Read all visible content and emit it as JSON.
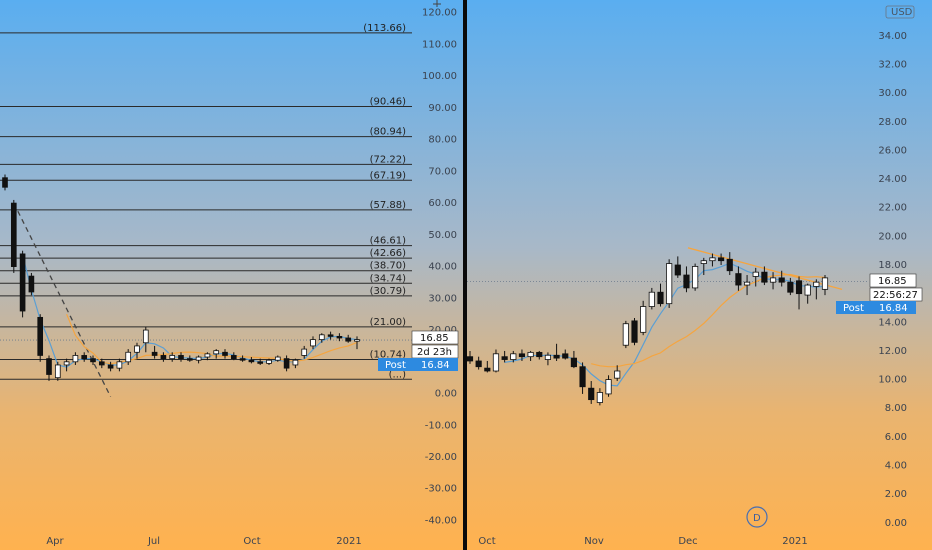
{
  "chart_data": [
    {
      "type": "candlestick",
      "panel": "left",
      "y_axis": {
        "ticks": [
          "-40.00",
          "-30.00",
          "-20.00",
          "-10.00",
          "0.00",
          "10.00",
          "20.00",
          "30.00",
          "40.00",
          "50.00",
          "60.00",
          "70.00",
          "80.00",
          "90.00",
          "100.00",
          "110.00",
          "120.00"
        ],
        "range": [
          -43,
          124
        ]
      },
      "x_axis": {
        "labels": [
          "Apr",
          "Jul",
          "Oct",
          "2021"
        ]
      },
      "levels": [
        {
          "label": "(113.66)",
          "value": 113.66
        },
        {
          "label": "(90.46)",
          "value": 90.46
        },
        {
          "label": "(80.94)",
          "value": 80.94
        },
        {
          "label": "(72.22)",
          "value": 72.22
        },
        {
          "label": "(67.19)",
          "value": 67.19
        },
        {
          "label": "(57.88)",
          "value": 57.88
        },
        {
          "label": "(46.61)",
          "value": 46.61
        },
        {
          "label": "(42.66)",
          "value": 42.66
        },
        {
          "label": "(38.70)",
          "value": 38.7
        },
        {
          "label": "(34.74)",
          "value": 34.74
        },
        {
          "label": "(30.79)",
          "value": 30.79
        },
        {
          "label": "(21.00)",
          "value": 21.0
        },
        {
          "label": "(10.74)",
          "value": 10.74
        },
        {
          "label": "(...)",
          "value": 4.5
        }
      ],
      "candles": [
        {
          "o": 68,
          "h": 69,
          "l": 64,
          "c": 65
        },
        {
          "o": 60,
          "h": 61,
          "l": 38,
          "c": 40
        },
        {
          "o": 44,
          "h": 45,
          "l": 24,
          "c": 26
        },
        {
          "o": 37,
          "h": 38,
          "l": 31,
          "c": 32
        },
        {
          "o": 24,
          "h": 25,
          "l": 10,
          "c": 12
        },
        {
          "o": 11,
          "h": 12,
          "l": 4,
          "c": 6
        },
        {
          "o": 5,
          "h": 10,
          "l": 4,
          "c": 9
        },
        {
          "o": 9,
          "h": 11,
          "l": 7,
          "c": 10
        },
        {
          "o": 10,
          "h": 13,
          "l": 9,
          "c": 12
        },
        {
          "o": 12,
          "h": 13,
          "l": 10,
          "c": 11
        },
        {
          "o": 11,
          "h": 12,
          "l": 9,
          "c": 10
        },
        {
          "o": 10,
          "h": 11,
          "l": 8,
          "c": 9
        },
        {
          "o": 9,
          "h": 10,
          "l": 7,
          "c": 8
        },
        {
          "o": 8,
          "h": 11,
          "l": 7,
          "c": 10
        },
        {
          "o": 10,
          "h": 14,
          "l": 9,
          "c": 13
        },
        {
          "o": 13,
          "h": 16,
          "l": 11,
          "c": 15
        },
        {
          "o": 16,
          "h": 21,
          "l": 13,
          "c": 20
        },
        {
          "o": 13,
          "h": 15,
          "l": 11,
          "c": 12
        },
        {
          "o": 12,
          "h": 13,
          "l": 10,
          "c": 11
        },
        {
          "o": 11,
          "h": 13,
          "l": 10,
          "c": 12
        },
        {
          "o": 12,
          "h": 13,
          "l": 10,
          "c": 11
        },
        {
          "o": 11,
          "h": 12,
          "l": 10,
          "c": 10.5
        },
        {
          "o": 10.5,
          "h": 12,
          "l": 9.5,
          "c": 11.5
        },
        {
          "o": 11.5,
          "h": 13,
          "l": 10.5,
          "c": 12.5
        },
        {
          "o": 12.5,
          "h": 14,
          "l": 11,
          "c": 13.5
        },
        {
          "o": 13,
          "h": 14,
          "l": 11,
          "c": 12
        },
        {
          "o": 12,
          "h": 13,
          "l": 10.5,
          "c": 11
        },
        {
          "o": 11,
          "h": 12,
          "l": 10,
          "c": 10.5
        },
        {
          "o": 10.5,
          "h": 11.5,
          "l": 9.5,
          "c": 10
        },
        {
          "o": 10,
          "h": 11,
          "l": 9,
          "c": 9.5
        },
        {
          "o": 9.5,
          "h": 11,
          "l": 9,
          "c": 10.5
        },
        {
          "o": 10.5,
          "h": 12,
          "l": 10,
          "c": 11.5
        },
        {
          "o": 11,
          "h": 12,
          "l": 7,
          "c": 8
        },
        {
          "o": 9,
          "h": 11,
          "l": 8,
          "c": 10.5
        },
        {
          "o": 12,
          "h": 15,
          "l": 11,
          "c": 14
        },
        {
          "o": 15,
          "h": 18,
          "l": 14,
          "c": 17
        },
        {
          "o": 17,
          "h": 19,
          "l": 16,
          "c": 18.5
        },
        {
          "o": 18.5,
          "h": 19.5,
          "l": 17,
          "c": 18
        },
        {
          "o": 18,
          "h": 19,
          "l": 16.5,
          "c": 17.5
        },
        {
          "o": 17.5,
          "h": 18.5,
          "l": 16,
          "c": 16.5
        },
        {
          "o": 16.5,
          "h": 18,
          "l": 14,
          "c": 17
        }
      ],
      "tags": {
        "price": "16.85",
        "countdown": "2d 23h",
        "post_label": "Post",
        "post_value": "16.84"
      }
    },
    {
      "type": "candlestick",
      "panel": "right",
      "y_axis": {
        "ticks": [
          "0.00",
          "2.00",
          "4.00",
          "6.00",
          "8.00",
          "10.00",
          "12.00",
          "14.00",
          "16.00",
          "18.00",
          "20.00",
          "22.00",
          "24.00",
          "26.00",
          "28.00",
          "30.00",
          "32.00",
          "34.00"
        ],
        "range": [
          -0.5,
          36.5
        ]
      },
      "x_axis": {
        "labels": [
          "Oct",
          "Nov",
          "Dec",
          "2021"
        ]
      },
      "currency": "USD",
      "interval_badge": "D",
      "candles": [
        {
          "o": 11.6,
          "h": 12.0,
          "l": 11.1,
          "c": 11.3
        },
        {
          "o": 11.3,
          "h": 11.6,
          "l": 10.7,
          "c": 10.9
        },
        {
          "o": 10.8,
          "h": 11.3,
          "l": 10.5,
          "c": 10.6
        },
        {
          "o": 10.6,
          "h": 12.1,
          "l": 10.5,
          "c": 11.8
        },
        {
          "o": 11.6,
          "h": 12.0,
          "l": 11.2,
          "c": 11.4
        },
        {
          "o": 11.4,
          "h": 12.0,
          "l": 11.2,
          "c": 11.8
        },
        {
          "o": 11.8,
          "h": 12.1,
          "l": 11.3,
          "c": 11.6
        },
        {
          "o": 11.6,
          "h": 12.0,
          "l": 11.3,
          "c": 11.9
        },
        {
          "o": 11.9,
          "h": 12.0,
          "l": 11.4,
          "c": 11.6
        },
        {
          "o": 11.4,
          "h": 11.9,
          "l": 11.0,
          "c": 11.7
        },
        {
          "o": 11.7,
          "h": 12.5,
          "l": 11.3,
          "c": 11.5
        },
        {
          "o": 11.8,
          "h": 12.1,
          "l": 11.4,
          "c": 11.5
        },
        {
          "o": 11.5,
          "h": 12.0,
          "l": 10.8,
          "c": 10.9
        },
        {
          "o": 10.9,
          "h": 11.2,
          "l": 9.0,
          "c": 9.5
        },
        {
          "o": 9.4,
          "h": 9.9,
          "l": 8.3,
          "c": 8.6
        },
        {
          "o": 8.4,
          "h": 9.4,
          "l": 8.2,
          "c": 9.1
        },
        {
          "o": 9.0,
          "h": 10.3,
          "l": 8.8,
          "c": 10.0
        },
        {
          "o": 10.1,
          "h": 11.0,
          "l": 9.9,
          "c": 10.6
        },
        {
          "o": 12.4,
          "h": 14.1,
          "l": 12.2,
          "c": 13.9
        },
        {
          "o": 14.1,
          "h": 14.3,
          "l": 12.4,
          "c": 12.6
        },
        {
          "o": 13.3,
          "h": 15.5,
          "l": 13.1,
          "c": 15.1
        },
        {
          "o": 15.1,
          "h": 16.4,
          "l": 14.9,
          "c": 16.1
        },
        {
          "o": 16.1,
          "h": 16.7,
          "l": 15.1,
          "c": 15.3
        },
        {
          "o": 15.3,
          "h": 18.4,
          "l": 15.0,
          "c": 18.1
        },
        {
          "o": 18.0,
          "h": 18.6,
          "l": 17.1,
          "c": 17.3
        },
        {
          "o": 17.3,
          "h": 17.9,
          "l": 16.1,
          "c": 16.4
        },
        {
          "o": 16.4,
          "h": 18.1,
          "l": 16.2,
          "c": 17.9
        },
        {
          "o": 18.1,
          "h": 18.5,
          "l": 17.3,
          "c": 18.3
        },
        {
          "o": 18.3,
          "h": 18.8,
          "l": 17.9,
          "c": 18.5
        },
        {
          "o": 18.5,
          "h": 18.8,
          "l": 18.0,
          "c": 18.3
        },
        {
          "o": 18.4,
          "h": 18.9,
          "l": 17.3,
          "c": 17.6
        },
        {
          "o": 17.4,
          "h": 17.9,
          "l": 16.2,
          "c": 16.6
        },
        {
          "o": 16.6,
          "h": 17.3,
          "l": 15.9,
          "c": 16.8
        },
        {
          "o": 17.2,
          "h": 17.8,
          "l": 16.5,
          "c": 17.5
        },
        {
          "o": 17.5,
          "h": 17.9,
          "l": 16.6,
          "c": 16.8
        },
        {
          "o": 16.8,
          "h": 17.5,
          "l": 16.3,
          "c": 17.1
        },
        {
          "o": 17.1,
          "h": 17.6,
          "l": 16.5,
          "c": 16.8
        },
        {
          "o": 16.8,
          "h": 17.1,
          "l": 15.9,
          "c": 16.1
        },
        {
          "o": 16.9,
          "h": 17.2,
          "l": 14.9,
          "c": 16.0
        },
        {
          "o": 15.9,
          "h": 16.7,
          "l": 15.3,
          "c": 16.6
        },
        {
          "o": 16.5,
          "h": 17.0,
          "l": 15.6,
          "c": 16.8
        },
        {
          "o": 16.3,
          "h": 17.3,
          "l": 15.9,
          "c": 17.1
        }
      ],
      "tags": {
        "price": "16.85",
        "countdown": "22:56:27",
        "post_label": "Post",
        "post_value": "16.84"
      }
    }
  ],
  "colors": {
    "bull_body": "#ffffff",
    "bear_body": "#111111",
    "wick": "#111111",
    "ma_orange": "#f5a540",
    "ma_blue": "#5b9fd4",
    "level_line": "#2a2a2a",
    "divider": "#0a0a0a",
    "post_tag": "#2d8ae0"
  }
}
